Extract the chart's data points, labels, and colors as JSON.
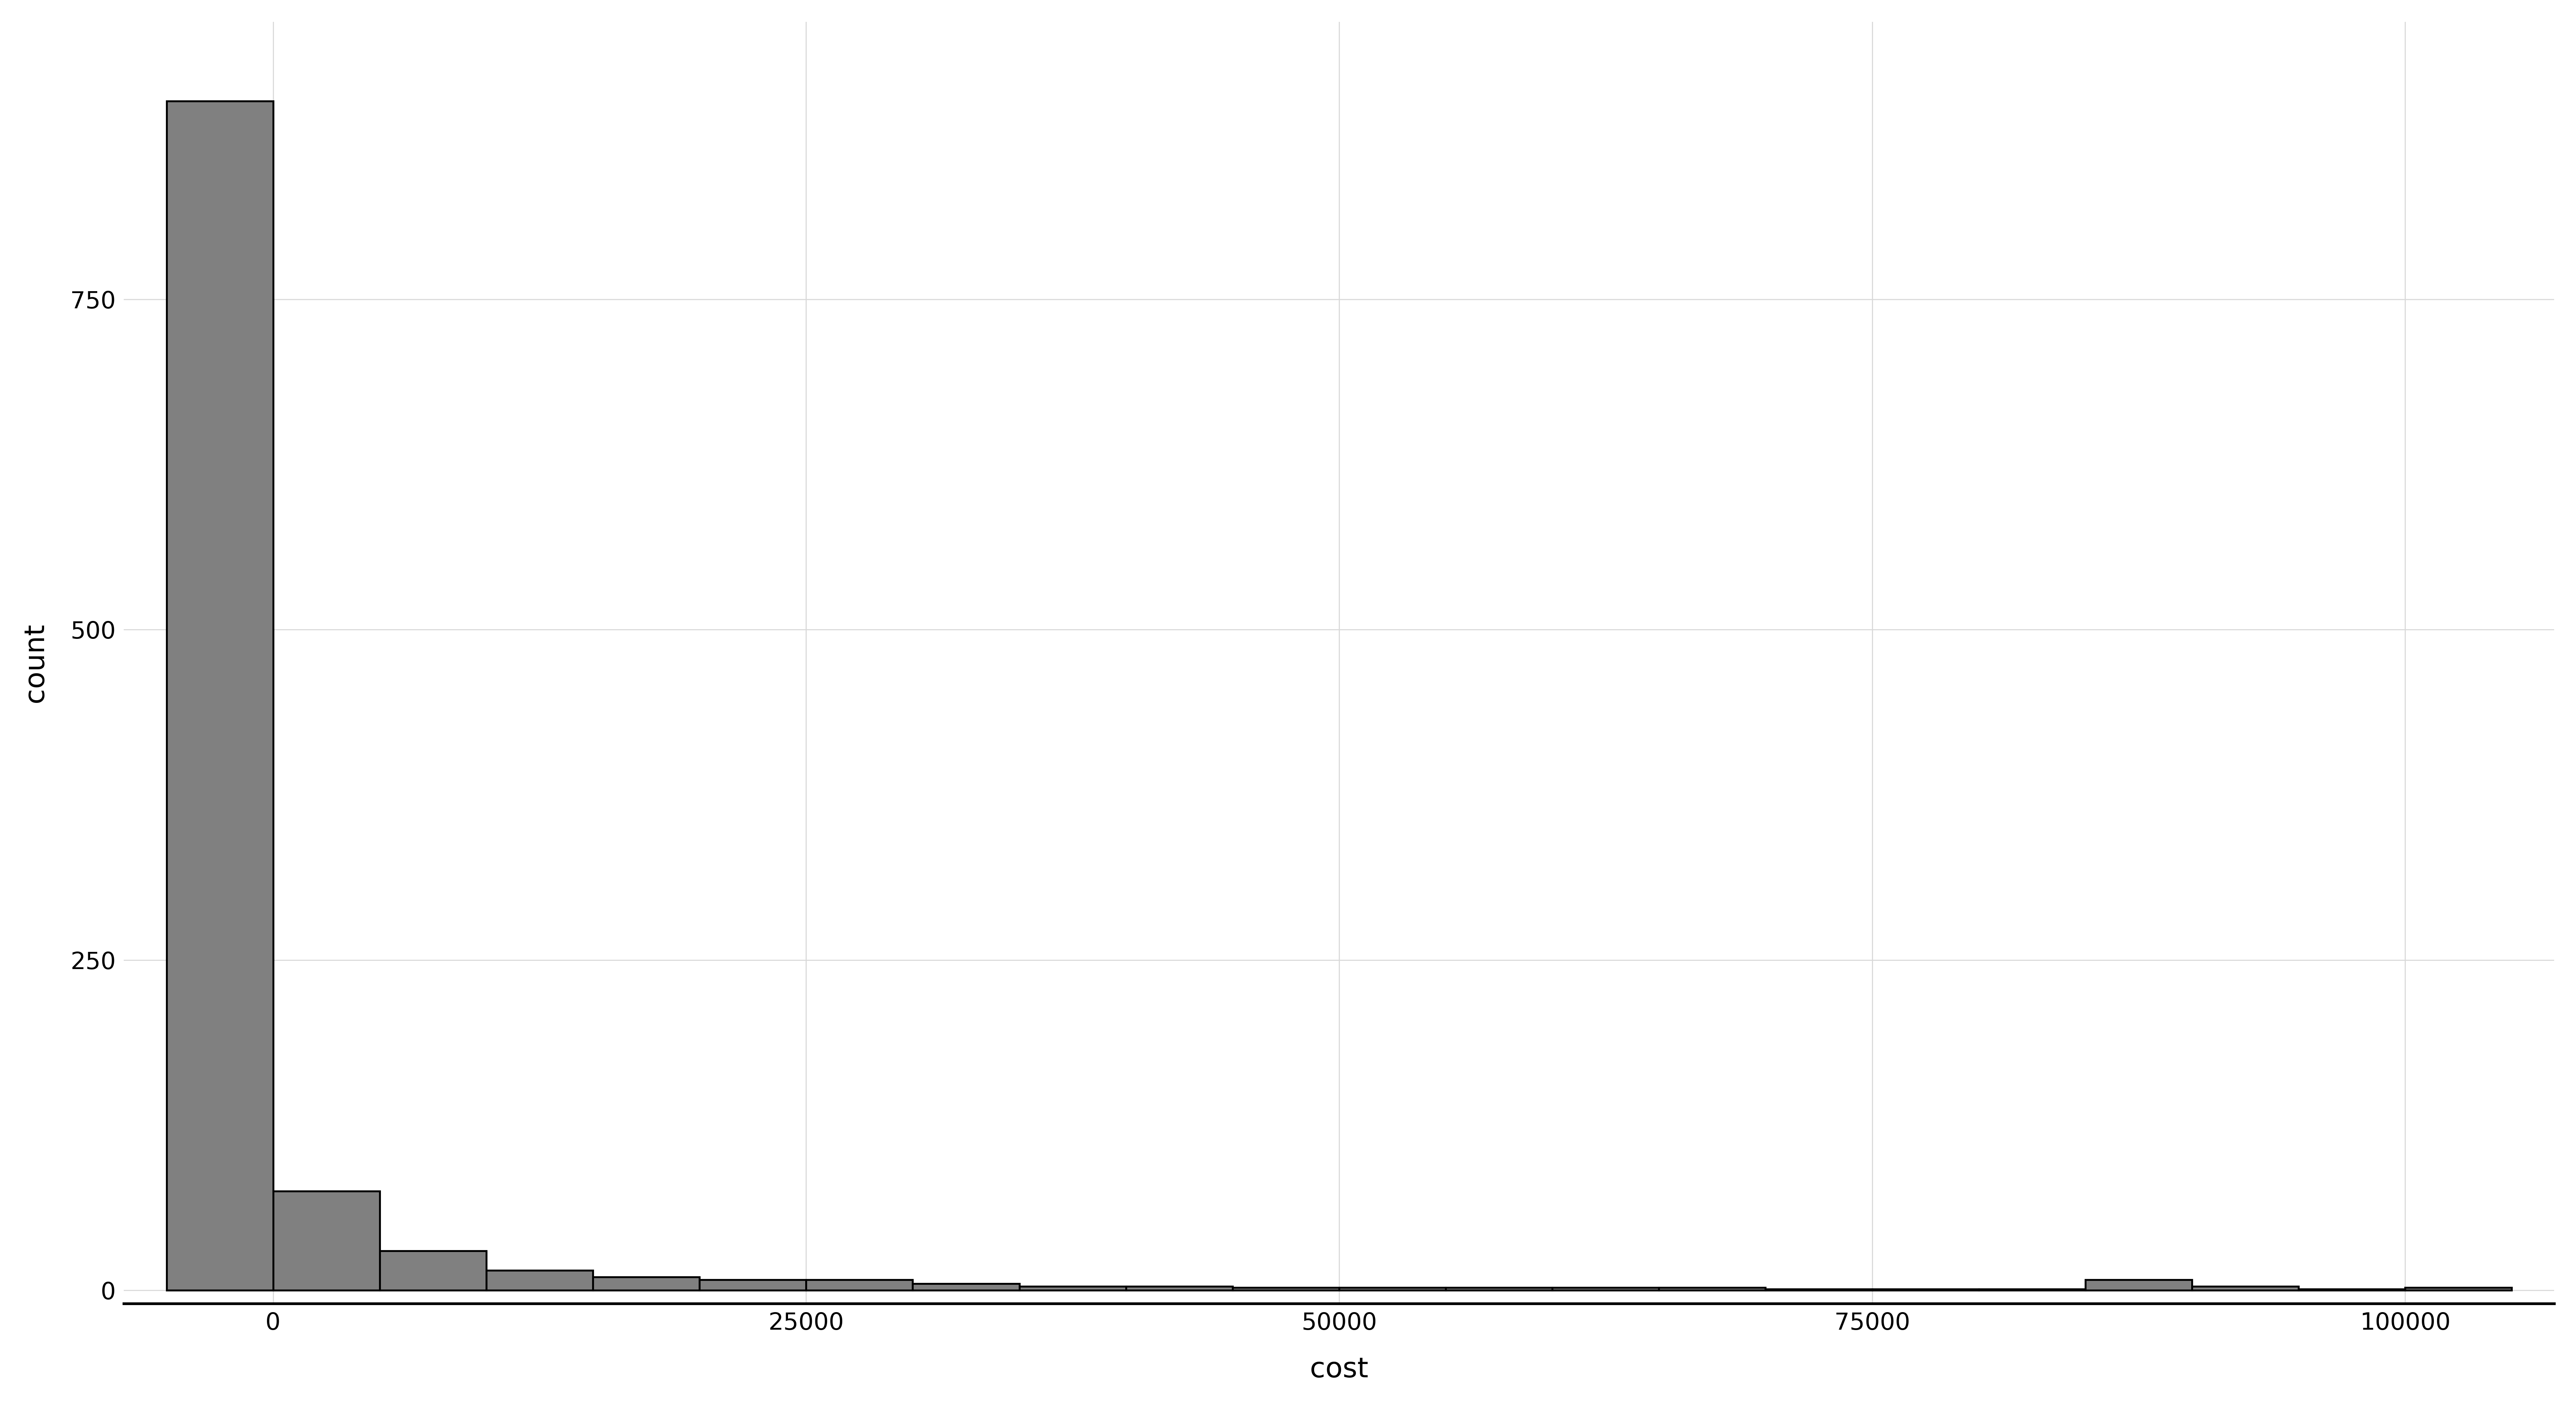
{
  "title": "",
  "xlabel": "cost",
  "ylabel": "count",
  "background_color": "#ffffff",
  "panel_background": "#ffffff",
  "grid_color": "#d9d9d9",
  "bar_color": "#808080",
  "bar_edge_color": "#000000",
  "xlim": [
    -7000,
    107000
  ],
  "ylim": [
    -10,
    960
  ],
  "xticks": [
    0,
    25000,
    50000,
    75000,
    100000
  ],
  "yticks": [
    0,
    250,
    500,
    750
  ],
  "bin_edges": [
    -5000,
    0,
    5000,
    10000,
    15000,
    20000,
    25000,
    30000,
    35000,
    40000,
    45000,
    50000,
    55000,
    60000,
    65000,
    70000,
    75000,
    80000,
    85000,
    90000,
    95000,
    100000,
    105000
  ],
  "bin_counts": [
    900,
    75,
    30,
    15,
    10,
    8,
    8,
    5,
    3,
    3,
    2,
    2,
    2,
    2,
    2,
    1,
    1,
    1,
    8,
    3,
    1,
    2
  ],
  "bar_linewidth": 3.5,
  "label_fontsize": 52,
  "tick_fontsize": 44,
  "axis_linewidth": 5
}
